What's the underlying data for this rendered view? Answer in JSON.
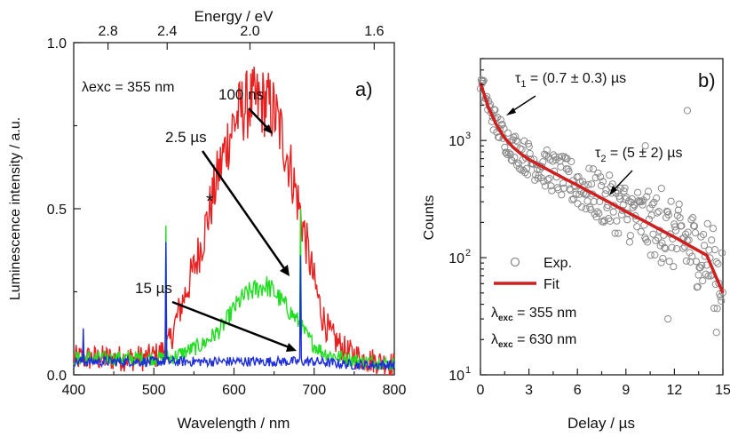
{
  "colors": {
    "series_100ns": "#e8201f",
    "series_2_5us": "#22dd22",
    "series_15us": "#1f2fd8",
    "fit": "#cf1f1f",
    "exp_marker": "#8a8a8a"
  },
  "chart_data": [
    {
      "type": "line",
      "panel_label": "a)",
      "xlabel": "Wavelength / nm",
      "ylabel": "Luminescence intensity / a.u.",
      "top_axis_label": "Energy / eV",
      "xlim": [
        400,
        800
      ],
      "ylim": [
        0,
        1.0
      ],
      "xticks": [
        400,
        500,
        600,
        700,
        800
      ],
      "xtick_labels": [
        "400",
        "500",
        "600",
        "700",
        "800"
      ],
      "yticks": [
        0.0,
        0.5,
        1.0
      ],
      "ytick_labels": [
        "0.0",
        "0.5",
        "1.0"
      ],
      "top_ticks_eV": [
        2.8,
        2.4,
        2.0,
        1.6
      ],
      "top_tick_labels": [
        "2.8",
        "2.4",
        "2.0",
        "1.6"
      ],
      "annotations": {
        "excitation": "λexc = 355 nm",
        "asterisk": "*",
        "label_100ns": "100 ns",
        "label_2_5us": "2.5 µs",
        "label_15us": "15 µs"
      },
      "series": [
        {
          "name": "100 ns",
          "x": [
            400,
            430,
            460,
            490,
            505,
            515,
            520,
            525,
            530,
            540,
            550,
            560,
            570,
            580,
            590,
            600,
            610,
            620,
            630,
            640,
            650,
            660,
            670,
            680,
            690,
            700,
            710,
            720,
            740,
            760,
            780,
            800
          ],
          "y": [
            0.05,
            0.05,
            0.05,
            0.05,
            0.06,
            0.08,
            0.1,
            0.14,
            0.18,
            0.25,
            0.32,
            0.4,
            0.5,
            0.6,
            0.69,
            0.76,
            0.8,
            0.82,
            0.82,
            0.82,
            0.79,
            0.72,
            0.63,
            0.52,
            0.4,
            0.28,
            0.18,
            0.12,
            0.07,
            0.05,
            0.04,
            0.03
          ]
        },
        {
          "name": "2.5 µs",
          "x": [
            400,
            430,
            460,
            490,
            510,
            520,
            530,
            540,
            550,
            560,
            570,
            580,
            590,
            600,
            610,
            620,
            630,
            640,
            650,
            660,
            670,
            680,
            690,
            700,
            710,
            720,
            740,
            760,
            780,
            800
          ],
          "y": [
            0.05,
            0.05,
            0.05,
            0.05,
            0.05,
            0.05,
            0.06,
            0.07,
            0.08,
            0.09,
            0.11,
            0.13,
            0.16,
            0.2,
            0.23,
            0.25,
            0.26,
            0.27,
            0.25,
            0.22,
            0.19,
            0.16,
            0.12,
            0.09,
            0.07,
            0.06,
            0.05,
            0.04,
            0.04,
            0.03
          ]
        },
        {
          "name": "15 µs",
          "x": [
            400,
            450,
            500,
            550,
            600,
            650,
            700,
            750,
            800
          ],
          "y": [
            0.04,
            0.04,
            0.04,
            0.04,
            0.04,
            0.04,
            0.04,
            0.03,
            0.03
          ]
        }
      ]
    },
    {
      "type": "scatter",
      "panel_label": "b)",
      "xlabel": "Delay / µs",
      "ylabel": "Counts",
      "y_scale": "log",
      "xlim": [
        0,
        15
      ],
      "ylim": [
        10,
        5000
      ],
      "xticks": [
        0,
        3,
        6,
        9,
        12,
        15
      ],
      "xtick_labels": [
        "0",
        "3",
        "6",
        "9",
        "12",
        "15"
      ],
      "yticks": [
        10,
        100,
        1000
      ],
      "ytick_labels": [
        "10",
        "10",
        "10"
      ],
      "ytick_exponents": [
        "1",
        "2",
        "3"
      ],
      "annotations": {
        "tau1_prefix": "τ",
        "tau1_sub": "1",
        "tau1_value": " = (0.7 ± 0.3) µs",
        "tau2_prefix": "τ",
        "tau2_sub": "2",
        "tau2_value": " = (5 ± 2) µs",
        "exc_prefix": "λ",
        "exc_sub": "exc",
        "exc_value": " = 355 nm",
        "em_prefix": "λ",
        "em_sub": "exc",
        "em_value": " = 630 nm"
      },
      "legend": {
        "placement": "bottom-left",
        "entries": [
          "Exp.",
          "Fit"
        ]
      },
      "fit": {
        "name": "Fit",
        "x": [
          0,
          0.5,
          1,
          1.5,
          2,
          2.5,
          3,
          4,
          5,
          6,
          7,
          8,
          9,
          10,
          11,
          12,
          13,
          14,
          15
        ],
        "y": [
          3100,
          1900,
          1350,
          1050,
          880,
          770,
          690,
          580,
          490,
          415,
          350,
          295,
          248,
          210,
          177,
          150,
          125,
          105,
          50
        ]
      },
      "exp": {
        "name": "Exp.",
        "center_curve": "fit",
        "count": 300,
        "spread_decades_start": 0.1,
        "spread_decades_end": 0.35
      },
      "outliers": [
        {
          "x": 0.1,
          "y": 3200
        },
        {
          "x": 12.8,
          "y": 1800
        },
        {
          "x": 11.2,
          "y": 390
        },
        {
          "x": 10.2,
          "y": 900
        },
        {
          "x": 11.6,
          "y": 30
        },
        {
          "x": 14.6,
          "y": 23
        }
      ]
    }
  ]
}
